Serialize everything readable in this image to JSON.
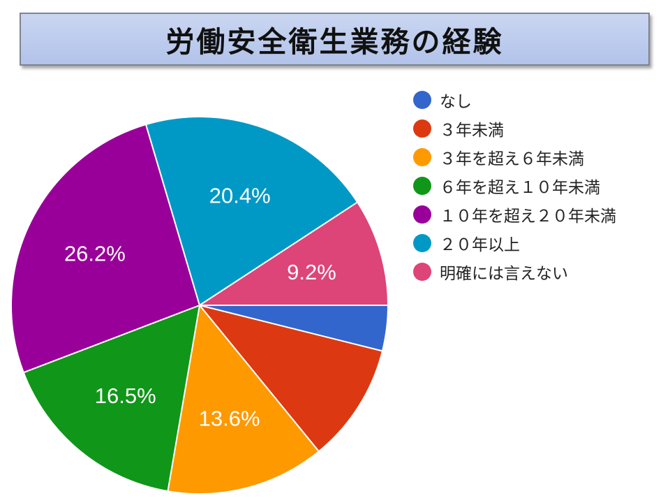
{
  "title": "労働安全衛生業務の経験",
  "chart_data": {
    "type": "pie",
    "start_angle_deg": 0,
    "direction": "clockwise",
    "legend_position": "right",
    "slices": [
      {
        "label": "なし",
        "value": 3.9,
        "color": "#3366cc",
        "data_label": ""
      },
      {
        "label": "３年未満",
        "value": 10.2,
        "color": "#dc3912",
        "data_label": ""
      },
      {
        "label": "３年を超え６年未満",
        "value": 13.6,
        "color": "#ff9900",
        "data_label": "13.6%"
      },
      {
        "label": "６年を超え１０年未満",
        "value": 16.5,
        "color": "#109618",
        "data_label": "16.5%"
      },
      {
        "label": "１０年を超え２０年未満",
        "value": 26.2,
        "color": "#990099",
        "data_label": "26.2%"
      },
      {
        "label": "２０年以上",
        "value": 20.4,
        "color": "#0099c6",
        "data_label": "20.4%"
      },
      {
        "label": "明確には言えない",
        "value": 9.2,
        "color": "#dd4477",
        "data_label": "9.2%"
      }
    ]
  }
}
